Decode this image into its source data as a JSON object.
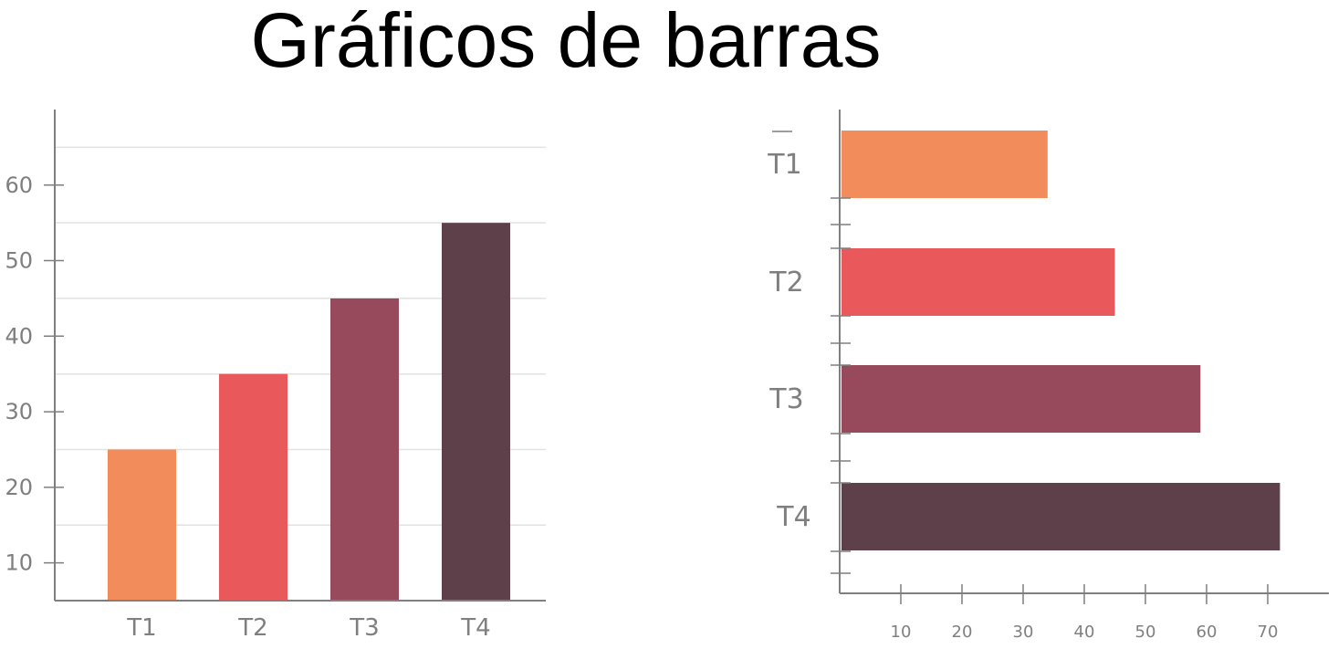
{
  "title": "Gráficos de barras",
  "chart_data": [
    {
      "type": "bar",
      "orientation": "vertical",
      "categories": [
        "T1",
        "T2",
        "T3",
        "T4"
      ],
      "values": [
        25,
        35,
        45,
        55
      ],
      "colors": [
        "#f28c5b",
        "#e9595b",
        "#974a5b",
        "#5e404b"
      ],
      "y_ticks": [
        "10",
        "20",
        "30",
        "40",
        "50",
        "60"
      ],
      "ylim": [
        5,
        70
      ],
      "grid": true
    },
    {
      "type": "bar",
      "orientation": "horizontal",
      "categories": [
        "T1",
        "T2",
        "T3",
        "T4"
      ],
      "values": [
        34,
        45,
        59,
        72
      ],
      "colors": [
        "#f28c5b",
        "#e9595b",
        "#974a5b",
        "#5e404b"
      ],
      "x_ticks": [
        "10",
        "20",
        "30",
        "40",
        "50",
        "60",
        "70"
      ],
      "xlim": [
        0,
        80
      ],
      "grid": false
    }
  ]
}
